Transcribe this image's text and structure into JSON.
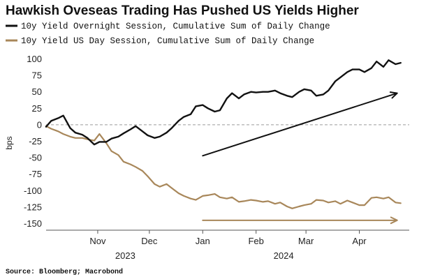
{
  "chart_data": {
    "type": "line",
    "title": "Hawkish Oveseas Trading Has Pushed US Yields Higher",
    "ylabel": "bps",
    "ylim": [
      -160,
      110
    ],
    "yticks": [
      100,
      75,
      50,
      25,
      0,
      -25,
      -50,
      -75,
      -100,
      -125,
      -150
    ],
    "xlim": [
      "2023-10-02",
      "2024-04-30"
    ],
    "xticks": [
      {
        "date": "2023-11-01",
        "label": "Nov"
      },
      {
        "date": "2023-12-01",
        "label": "Dec"
      },
      {
        "date": "2024-01-01",
        "label": "Jan"
      },
      {
        "date": "2024-02-01",
        "label": "Feb"
      },
      {
        "date": "2024-03-01",
        "label": "Mar"
      },
      {
        "date": "2024-04-01",
        "label": "Apr"
      }
    ],
    "years": [
      {
        "date": "2023-11-17",
        "label": "2023"
      },
      {
        "date": "2024-02-17",
        "label": "2024"
      }
    ],
    "zero_line": "dashed",
    "legend_position": "top-left",
    "series": [
      {
        "name": "10y Yield Overnight Session, Cumulative Sum of Daily Change",
        "color": "#111111",
        "x": [
          "2023-10-02",
          "2023-10-05",
          "2023-10-09",
          "2023-10-12",
          "2023-10-16",
          "2023-10-19",
          "2023-10-23",
          "2023-10-26",
          "2023-10-30",
          "2023-11-02",
          "2023-11-06",
          "2023-11-09",
          "2023-11-13",
          "2023-11-16",
          "2023-11-20",
          "2023-11-23",
          "2023-11-27",
          "2023-11-30",
          "2023-12-04",
          "2023-12-07",
          "2023-12-11",
          "2023-12-14",
          "2023-12-18",
          "2023-12-21",
          "2023-12-25",
          "2023-12-28",
          "2024-01-01",
          "2024-01-04",
          "2024-01-08",
          "2024-01-11",
          "2024-01-15",
          "2024-01-18",
          "2024-01-22",
          "2024-01-25",
          "2024-01-29",
          "2024-02-01",
          "2024-02-05",
          "2024-02-08",
          "2024-02-12",
          "2024-02-15",
          "2024-02-19",
          "2024-02-22",
          "2024-02-26",
          "2024-02-29",
          "2024-03-04",
          "2024-03-07",
          "2024-03-11",
          "2024-03-14",
          "2024-03-18",
          "2024-03-21",
          "2024-03-25",
          "2024-03-28",
          "2024-04-01",
          "2024-04-04",
          "2024-04-08",
          "2024-04-11",
          "2024-04-15",
          "2024-04-18",
          "2024-04-22",
          "2024-04-25"
        ],
        "values": [
          -3,
          6,
          10,
          14,
          -5,
          -12,
          -15,
          -20,
          -30,
          -26,
          -26,
          -21,
          -18,
          -13,
          -7,
          -2,
          -10,
          -16,
          -20,
          -18,
          -12,
          -5,
          6,
          12,
          16,
          28,
          30,
          25,
          20,
          22,
          40,
          48,
          40,
          46,
          50,
          49,
          50,
          50,
          52,
          48,
          44,
          42,
          50,
          54,
          52,
          44,
          46,
          52,
          66,
          72,
          80,
          84,
          84,
          80,
          86,
          96,
          88,
          98,
          92,
          94
        ]
      },
      {
        "name": "10y Yield US Day Session, Cumulative Sum of Daily Change",
        "color": "#a8875a",
        "x": [
          "2023-10-02",
          "2023-10-05",
          "2023-10-09",
          "2023-10-12",
          "2023-10-16",
          "2023-10-19",
          "2023-10-23",
          "2023-10-26",
          "2023-10-30",
          "2023-11-02",
          "2023-11-06",
          "2023-11-09",
          "2023-11-13",
          "2023-11-16",
          "2023-11-20",
          "2023-11-23",
          "2023-11-27",
          "2023-11-30",
          "2023-12-04",
          "2023-12-07",
          "2023-12-11",
          "2023-12-14",
          "2023-12-18",
          "2023-12-21",
          "2023-12-25",
          "2023-12-28",
          "2024-01-01",
          "2024-01-04",
          "2024-01-08",
          "2024-01-11",
          "2024-01-15",
          "2024-01-18",
          "2024-01-22",
          "2024-01-25",
          "2024-01-29",
          "2024-02-01",
          "2024-02-05",
          "2024-02-08",
          "2024-02-12",
          "2024-02-15",
          "2024-02-19",
          "2024-02-22",
          "2024-02-26",
          "2024-02-29",
          "2024-03-04",
          "2024-03-07",
          "2024-03-11",
          "2024-03-14",
          "2024-03-18",
          "2024-03-21",
          "2024-03-25",
          "2024-03-28",
          "2024-04-01",
          "2024-04-04",
          "2024-04-08",
          "2024-04-11",
          "2024-04-15",
          "2024-04-18",
          "2024-04-22",
          "2024-04-25"
        ],
        "values": [
          -2,
          -6,
          -10,
          -14,
          -18,
          -20,
          -20,
          -22,
          -24,
          -14,
          -28,
          -40,
          -46,
          -56,
          -60,
          -64,
          -70,
          -78,
          -90,
          -94,
          -90,
          -96,
          -104,
          -108,
          -112,
          -114,
          -108,
          -107,
          -105,
          -110,
          -112,
          -110,
          -117,
          -116,
          -114,
          -115,
          -117,
          -116,
          -120,
          -118,
          -124,
          -127,
          -124,
          -122,
          -120,
          -114,
          -115,
          -118,
          -116,
          -120,
          -115,
          -118,
          -122,
          -122,
          -111,
          -110,
          -112,
          -110,
          -118,
          -119
        ]
      }
    ],
    "annotations": [
      {
        "type": "arrow",
        "from": [
          "2024-01-01",
          -47
        ],
        "to": [
          "2024-04-23",
          48
        ]
      },
      {
        "type": "arrow",
        "from": [
          "2024-01-01",
          -145
        ],
        "to": [
          "2024-04-23",
          -145
        ]
      }
    ],
    "source": "Source: Bloomberg; Macrobond"
  }
}
